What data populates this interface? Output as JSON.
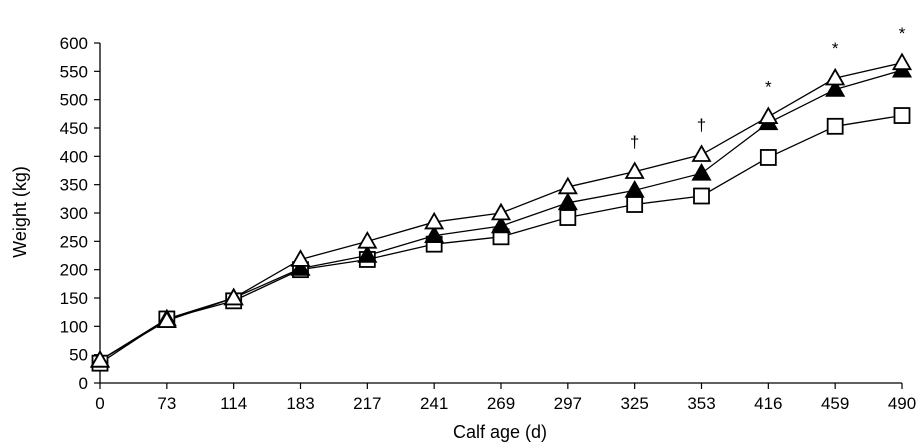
{
  "chart_data": {
    "type": "line",
    "xlabel": "Calf age (d)",
    "ylabel": "Weight (kg)",
    "categories": [
      "0",
      "73",
      "114",
      "183",
      "217",
      "241",
      "269",
      "297",
      "325",
      "353",
      "416",
      "459",
      "490"
    ],
    "ylim": [
      0,
      600
    ],
    "yticks": [
      0,
      50,
      100,
      150,
      200,
      250,
      300,
      350,
      400,
      450,
      500,
      550,
      600
    ],
    "grid": false,
    "series": [
      {
        "marker": "open-triangle",
        "values": [
          40,
          110,
          150,
          218,
          250,
          284,
          300,
          346,
          373,
          403,
          470,
          538,
          565
        ]
      },
      {
        "marker": "filled-triangle",
        "values": [
          40,
          113,
          150,
          202,
          225,
          260,
          277,
          318,
          340,
          370,
          459,
          518,
          552
        ]
      },
      {
        "marker": "open-square",
        "values": [
          35,
          113,
          145,
          200,
          218,
          245,
          258,
          292,
          315,
          330,
          398,
          453,
          472
        ]
      }
    ],
    "annotations": [
      {
        "category": "325",
        "text": "†"
      },
      {
        "category": "353",
        "text": "†"
      },
      {
        "category": "416",
        "text": "*"
      },
      {
        "category": "459",
        "text": "*"
      },
      {
        "category": "490",
        "text": "*"
      }
    ]
  }
}
